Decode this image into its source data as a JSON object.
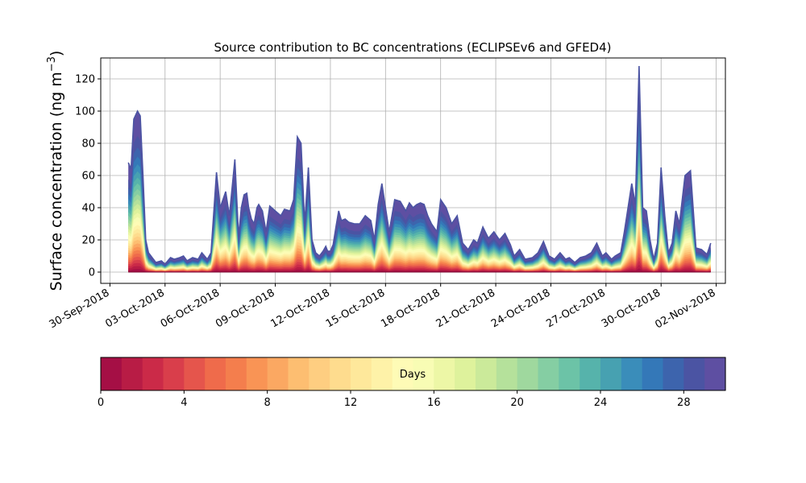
{
  "chart_data": {
    "type": "area",
    "title": "Source contribution to BC concentrations (ECLIPSEv6 and GFED4)",
    "ylabel_main": "Surface concentration (ng m",
    "ylabel_sup": "−3",
    "ylabel_close": ")",
    "xlabel": "",
    "ylim": [
      -7,
      133
    ],
    "yticks": [
      0,
      20,
      40,
      60,
      80,
      100,
      120
    ],
    "xaxis": {
      "start": "2018-09-29T12:00",
      "end": "2018-11-02T12:00",
      "ticks": [
        "30-Sep-2018",
        "03-Oct-2018",
        "06-Oct-2018",
        "09-Oct-2018",
        "12-Oct-2018",
        "15-Oct-2018",
        "18-Oct-2018",
        "21-Oct-2018",
        "24-Oct-2018",
        "27-Oct-2018",
        "30-Oct-2018",
        "02-Nov-2018"
      ]
    },
    "grid": true,
    "series_note": "stacked contributions by source age (days), total shown",
    "total": {
      "x_days_from_30sep": [
        1.0,
        1.15,
        1.3,
        1.5,
        1.65,
        1.8,
        1.95,
        2.1,
        2.3,
        2.5,
        2.8,
        3.0,
        3.3,
        3.5,
        3.8,
        4.0,
        4.2,
        4.5,
        4.8,
        5.0,
        5.3,
        5.5,
        5.8,
        6.0,
        6.3,
        6.5,
        6.8,
        7.0,
        7.15,
        7.3,
        7.45,
        7.55,
        7.7,
        7.85,
        8.0,
        8.1,
        8.3,
        8.5,
        8.7,
        9.0,
        9.3,
        9.5,
        9.8,
        10.0,
        10.2,
        10.4,
        10.6,
        10.8,
        11.0,
        11.2,
        11.4,
        11.6,
        11.75,
        11.85,
        12.0,
        12.15,
        12.3,
        12.45,
        12.6,
        12.8,
        13.0,
        13.3,
        13.6,
        13.9,
        14.2,
        14.4,
        14.6,
        14.8,
        15.0,
        15.2,
        15.5,
        15.8,
        16.1,
        16.3,
        16.5,
        16.7,
        16.9,
        17.1,
        17.3,
        17.5,
        17.8,
        18.0,
        18.3,
        18.6,
        18.9,
        19.2,
        19.5,
        19.8,
        20.0,
        20.3,
        20.6,
        20.9,
        21.2,
        21.5,
        21.8,
        22.0,
        22.3,
        22.6,
        23.0,
        23.3,
        23.6,
        23.9,
        24.2,
        24.5,
        24.8,
        25.0,
        25.3,
        25.6,
        25.9,
        26.2,
        26.5,
        26.8,
        27.0,
        27.3,
        27.5,
        27.8,
        28.0,
        28.2,
        28.4,
        28.6,
        28.8,
        29.0,
        29.2,
        29.4,
        29.6,
        29.8,
        30.0,
        30.2,
        30.4,
        30.6,
        30.8,
        31.0,
        31.3,
        31.6,
        31.9,
        32.2,
        32.5,
        32.7
      ],
      "y": [
        68,
        64,
        95,
        100,
        97,
        60,
        20,
        12,
        9,
        6,
        7,
        5,
        9,
        8,
        9,
        10,
        7,
        9,
        8,
        12,
        8,
        12,
        62,
        40,
        50,
        35,
        70,
        22,
        40,
        48,
        49,
        40,
        33,
        30,
        40,
        42,
        38,
        25,
        41,
        38,
        35,
        39,
        38,
        45,
        84,
        80,
        30,
        65,
        20,
        12,
        10,
        13,
        16,
        13,
        13,
        17,
        28,
        38,
        32,
        33,
        31,
        30,
        30,
        35,
        32,
        20,
        42,
        55,
        40,
        25,
        45,
        44,
        38,
        43,
        40,
        42,
        43,
        42,
        35,
        30,
        25,
        45,
        40,
        30,
        35,
        18,
        14,
        20,
        18,
        28,
        21,
        25,
        20,
        24,
        17,
        10,
        14,
        8,
        9,
        12,
        19,
        10,
        8,
        12,
        8,
        9,
        6,
        9,
        10,
        12,
        18,
        10,
        12,
        8,
        10,
        12,
        25,
        40,
        55,
        42,
        128,
        40,
        38,
        20,
        8,
        18,
        65,
        35,
        12,
        18,
        38,
        30,
        60,
        63,
        15,
        14,
        11,
        18
      ],
      "oldest_age_band_share_note": "colored by age"
    },
    "colorbar": {
      "label": "Days",
      "range": [
        0,
        30
      ],
      "ticks": [
        0,
        4,
        8,
        12,
        16,
        20,
        24,
        28
      ],
      "colors": [
        "#a50f45",
        "#b81c45",
        "#cb2a48",
        "#d93e4b",
        "#e5554c",
        "#ef6b4b",
        "#f47e4d",
        "#f99455",
        "#fba862",
        "#fdbe71",
        "#fece81",
        "#fedc8e",
        "#fee89b",
        "#fef2a8",
        "#fefbb6",
        "#f8fcb4",
        "#edf7a6",
        "#def29c",
        "#cbea9a",
        "#b5e19b",
        "#9fd89e",
        "#85cea3",
        "#6cc3a7",
        "#56b3ab",
        "#47a1b1",
        "#3a8dba",
        "#3478b8",
        "#3d64ad",
        "#4b54a3",
        "#5e4fa2"
      ]
    }
  }
}
